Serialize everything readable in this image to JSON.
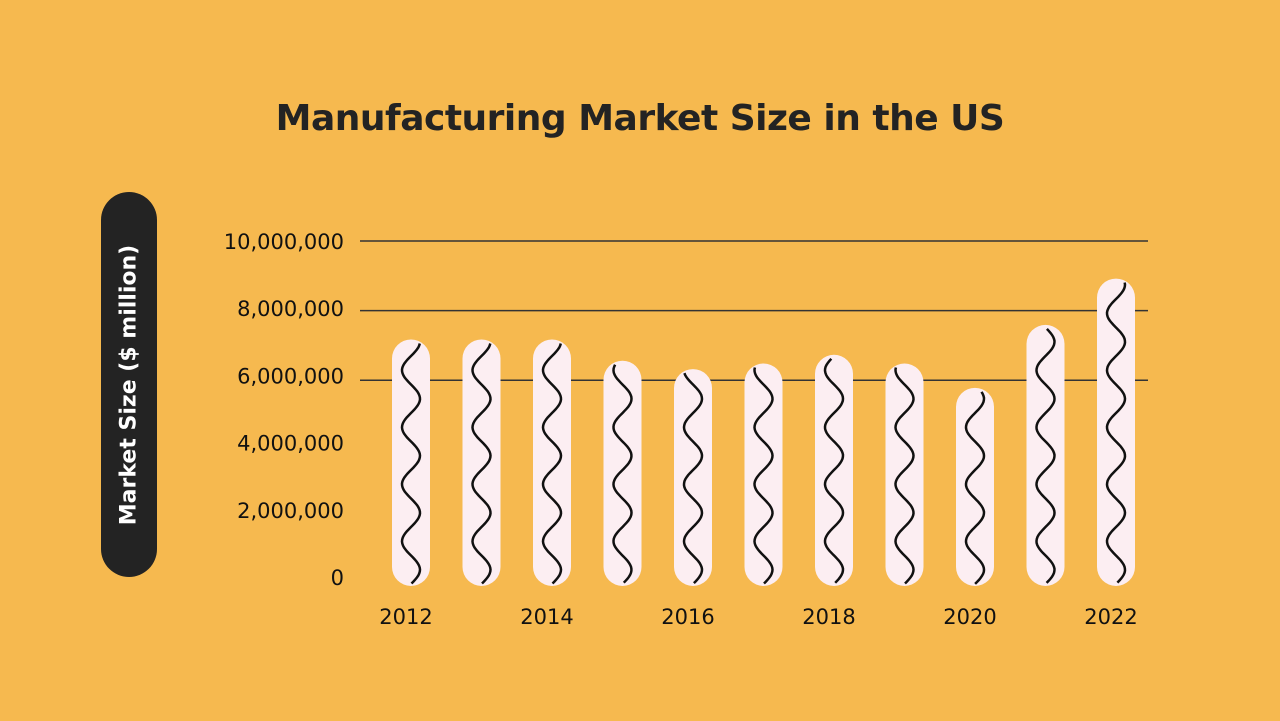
{
  "chart_data": {
    "type": "bar",
    "title": "Manufacturing Market Size in the US",
    "ylabel": "Market Size ($ million)",
    "xlabel": "",
    "categories": [
      "2012",
      "2013",
      "2014",
      "2015",
      "2016",
      "2017",
      "2018",
      "2019",
      "2020",
      "2021",
      "2022"
    ],
    "x_tick_labels": [
      "2012",
      "",
      "2014",
      "",
      "2016",
      "",
      "2018",
      "",
      "2020",
      "",
      "2022"
    ],
    "values": [
      7170000,
      7170000,
      7170000,
      6560000,
      6320000,
      6480000,
      6730000,
      6480000,
      5780000,
      7590000,
      8920000
    ],
    "ylim": [
      0,
      10000000
    ],
    "y_tick_labels": [
      "0",
      "2,000,000",
      "4,000,000",
      "6,000,000",
      "8,000,000",
      "10,000,000"
    ],
    "y_ticks": [
      0,
      2000000,
      4000000,
      6000000,
      8000000,
      10000000
    ],
    "gridlines_at": [
      6000000,
      8000000,
      10000000
    ],
    "colors": {
      "background": "#F6B94F",
      "bar": "#FCEEF2",
      "wave": "#111111",
      "grid": "#333333",
      "text": "#232323"
    }
  }
}
